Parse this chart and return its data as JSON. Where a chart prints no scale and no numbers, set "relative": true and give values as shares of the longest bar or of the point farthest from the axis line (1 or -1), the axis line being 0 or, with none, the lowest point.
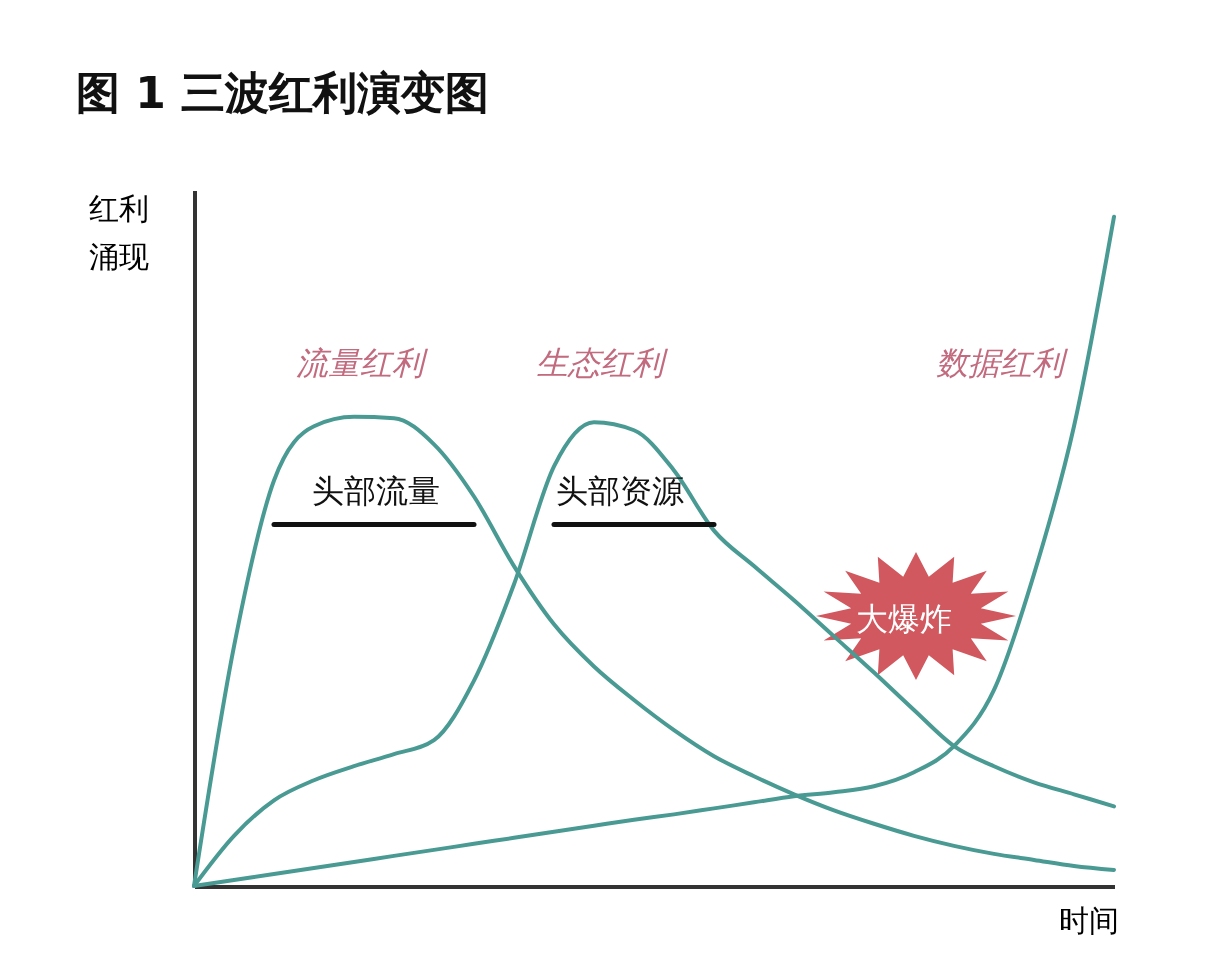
{
  "chart_data": {
    "type": "line",
    "title": "图 1   三波红利演变图",
    "ylabel": "红利涌现",
    "xlabel": "时间",
    "relative": true,
    "grid": false,
    "categories": [
      null,
      null,
      null,
      null,
      null,
      null,
      null,
      null,
      null,
      null,
      null,
      null,
      null,
      null,
      null,
      null,
      null,
      null,
      null,
      null,
      null,
      null,
      null,
      null
    ],
    "series": [
      {
        "name": "流量红利",
        "color": "#4a9a94",
        "values": [
          0,
          0.358,
          0.606,
          0.687,
          0.701,
          0.699,
          0.66,
          0.582,
          0.478,
          0.391,
          0.328,
          0.278,
          0.233,
          0.194,
          0.164,
          0.137,
          0.113,
          0.093,
          0.075,
          0.06,
          0.048,
          0.039,
          0.03,
          0.024
        ]
      },
      {
        "name": "生态红利",
        "color": "#4a9a94",
        "values": [
          0,
          0.075,
          0.128,
          0.158,
          0.179,
          0.197,
          0.218,
          0.307,
          0.451,
          0.627,
          0.693,
          0.681,
          0.621,
          0.531,
          0.478,
          0.427,
          0.373,
          0.319,
          0.263,
          0.209,
          0.179,
          0.155,
          0.137,
          0.119
        ]
      },
      {
        "name": "数据红利",
        "color": "#4a9a94",
        "values": [
          0,
          0.009,
          0.018,
          0.027,
          0.036,
          0.045,
          0.054,
          0.063,
          0.072,
          0.081,
          0.09,
          0.099,
          0.107,
          0.116,
          0.125,
          0.134,
          0.14,
          0.149,
          0.17,
          0.209,
          0.293,
          0.466,
          0.687,
          1
        ]
      },
      {
        "color": "#111111",
        "values": [
          null,
          null,
          0.54,
          0.54,
          0.54,
          0.54,
          0.54,
          0.54,
          null,
          null,
          null,
          null,
          null,
          null,
          null,
          null,
          null,
          null,
          null,
          null,
          null,
          null,
          null,
          null
        ]
      },
      {
        "color": "#111111",
        "values": [
          null,
          null,
          null,
          null,
          null,
          null,
          null,
          null,
          null,
          0.54,
          0.54,
          0.54,
          0.54,
          0.54,
          null,
          null,
          null,
          null,
          null,
          null,
          null,
          null,
          null,
          null
        ]
      }
    ],
    "annotations": [
      "头部流量",
      "头部资源",
      "大爆炸"
    ]
  }
}
